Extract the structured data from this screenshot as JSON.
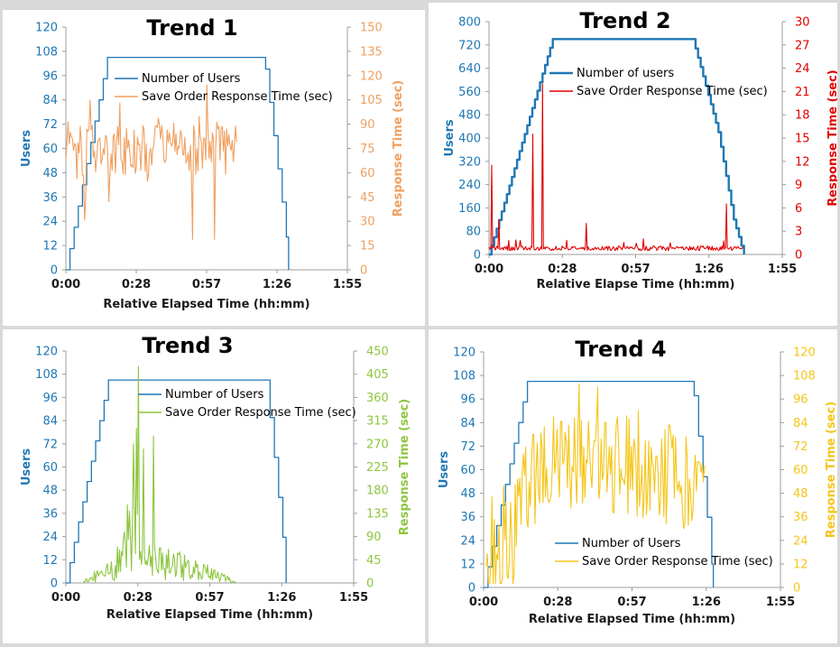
{
  "colors": {
    "users": "#1f77b4",
    "trend1": "#f0a060",
    "trend2": "#e00000",
    "trend3": "#8dc63f",
    "trend4": "#f5c518"
  },
  "chart_data": [
    {
      "type": "line",
      "title": "Trend 1",
      "xlabel": "Relative Elapsed Time (hh:mm)",
      "ylabel": "Users",
      "y2label": "Response Time (sec)",
      "x_ticks": [
        "0:00",
        "0:28",
        "0:57",
        "1:26",
        "1:55"
      ],
      "xlim_minutes": [
        0,
        115
      ],
      "y_ticks": [
        0,
        12,
        24,
        36,
        48,
        60,
        72,
        84,
        96,
        108,
        120
      ],
      "ylim": [
        0,
        120
      ],
      "y2_ticks": [
        0,
        15,
        30,
        45,
        60,
        75,
        90,
        105,
        120,
        135,
        150
      ],
      "y2lim": [
        0,
        150
      ],
      "legend": [
        "Number of Users",
        "Save Order Response Time (sec)"
      ],
      "series": [
        {
          "name": "Number of Users",
          "axis": "left",
          "shape": "users",
          "points": [
            [
              0,
              0
            ],
            [
              17,
              105
            ],
            [
              81,
              105
            ],
            [
              90,
              18
            ],
            [
              91,
              0
            ]
          ],
          "step_min": 1.7,
          "noise": 0,
          "seed": 1
        },
        {
          "name": "Save Order Response Time (sec)",
          "axis": "right",
          "shape": "noisy",
          "base": [
            [
              0,
              75
            ],
            [
              70,
              75
            ]
          ],
          "amp": 17,
          "spike_prob": 0.12,
          "spike_up": 45,
          "spike_down": 55,
          "step_min": 0.45,
          "min": 12,
          "max": 115,
          "seed": 11
        }
      ]
    },
    {
      "type": "line",
      "title": "Trend 2",
      "xlabel": "Relative Elapse Time (hh:mm)",
      "ylabel": "Users",
      "y2label": "Response Time (sec)",
      "x_ticks": [
        "0:00",
        "0:28",
        "0:57",
        "1:26",
        "1:55"
      ],
      "xlim_minutes": [
        0,
        115
      ],
      "y_ticks": [
        0,
        80,
        160,
        240,
        320,
        400,
        480,
        560,
        640,
        720,
        800
      ],
      "ylim": [
        0,
        800
      ],
      "y2_ticks": [
        0,
        3,
        6,
        9,
        12,
        15,
        18,
        21,
        24,
        27,
        30
      ],
      "y2lim": [
        0,
        30
      ],
      "legend": [
        "Number of users",
        "Save Order Response Time (sec)"
      ],
      "series": [
        {
          "name": "Number of users",
          "axis": "left",
          "shape": "users",
          "points": [
            [
              0,
              0
            ],
            [
              25,
              740
            ],
            [
              80,
              740
            ],
            [
              90,
              420
            ],
            [
              96,
              120
            ],
            [
              100,
              0
            ]
          ],
          "step_min": 1.0,
          "noise": 0,
          "seed": 2
        },
        {
          "name": "Save Order Response Time (sec)",
          "axis": "right",
          "shape": "spikes",
          "base": [
            [
              0,
              0.5
            ],
            [
              100,
              0.5
            ]
          ],
          "amp": 0.6,
          "step_min": 0.35,
          "seed": 21,
          "spikes": [
            [
              1,
              11.5
            ],
            [
              4,
              4.5
            ],
            [
              17,
              15.5
            ],
            [
              21,
              22
            ],
            [
              38,
              4
            ],
            [
              71,
              1.5
            ],
            [
              93,
              6.5
            ]
          ]
        }
      ]
    },
    {
      "type": "line",
      "title": "Trend 3",
      "xlabel": "Relative Elapsed Time (hh:mm)",
      "ylabel": "Users",
      "y2label": "Response Time (sec)",
      "x_ticks": [
        "0:00",
        "0:28",
        "0:57",
        "1:26",
        "1:55"
      ],
      "xlim_minutes": [
        0,
        115
      ],
      "y_ticks": [
        0,
        12,
        24,
        36,
        48,
        60,
        72,
        84,
        96,
        108,
        120
      ],
      "ylim": [
        0,
        120
      ],
      "y2_ticks": [
        0,
        45,
        90,
        135,
        180,
        225,
        270,
        315,
        360,
        405,
        450
      ],
      "y2lim": [
        0,
        450
      ],
      "legend": [
        "Number of Users",
        "Save Order Response Time (sec)"
      ],
      "series": [
        {
          "name": "Number of Users",
          "axis": "left",
          "shape": "users",
          "points": [
            [
              0,
              0
            ],
            [
              17,
              105
            ],
            [
              80,
              105
            ],
            [
              87,
              20
            ],
            [
              88,
              0
            ]
          ],
          "step_min": 1.7,
          "noise": 0,
          "seed": 3
        },
        {
          "name": "Save Order Response Time (sec)",
          "axis": "right",
          "shape": "burst",
          "base": [
            [
              7,
              2
            ],
            [
              20,
              30
            ],
            [
              26,
              90
            ],
            [
              30,
              60
            ],
            [
              40,
              35
            ],
            [
              55,
              20
            ],
            [
              68,
              2
            ]
          ],
          "amp": 1.0,
          "step_min": 0.4,
          "seed": 31,
          "spikes": [
            [
              27,
              270
            ],
            [
              28,
              300
            ],
            [
              29,
              420
            ],
            [
              31,
              260
            ],
            [
              35,
              285
            ]
          ]
        }
      ]
    },
    {
      "type": "line",
      "title": "Trend 4",
      "xlabel": "Relative Elapsed Time (hh:mm)",
      "ylabel": "Users",
      "y2label": "Response Time (sec)",
      "x_ticks": [
        "0:00",
        "0:28",
        "0:57",
        "1:26",
        "1:55"
      ],
      "xlim_minutes": [
        0,
        115
      ],
      "y_ticks": [
        0,
        12,
        24,
        36,
        48,
        60,
        72,
        84,
        96,
        108,
        120
      ],
      "ylim": [
        0,
        120
      ],
      "y2_ticks": [
        0,
        12,
        24,
        36,
        48,
        60,
        72,
        84,
        96,
        108,
        120
      ],
      "y2lim": [
        0,
        120
      ],
      "legend": [
        "Number of Users",
        "Save Order Response Time (sec)"
      ],
      "series": [
        {
          "name": "Number of Users",
          "axis": "left",
          "shape": "users",
          "points": [
            [
              0,
              0
            ],
            [
              17,
              105
            ],
            [
              81,
              105
            ],
            [
              88,
              20
            ],
            [
              89,
              0
            ]
          ],
          "step_min": 1.7,
          "noise": 0,
          "seed": 4
        },
        {
          "name": "Save Order Response Time (sec)",
          "axis": "right",
          "shape": "noisy",
          "base": [
            [
              1,
              5
            ],
            [
              10,
              22
            ],
            [
              16,
              50
            ],
            [
              25,
              62
            ],
            [
              55,
              62
            ],
            [
              80,
              55
            ],
            [
              86,
              40
            ]
          ],
          "amp": 26,
          "spike_prob": 0.1,
          "spike_up": 30,
          "spike_down": 35,
          "step_min": 0.45,
          "min": 2,
          "max": 110,
          "seed": 41
        }
      ]
    }
  ]
}
